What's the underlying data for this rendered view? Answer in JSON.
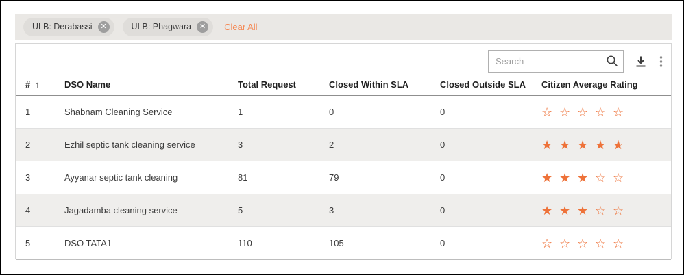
{
  "filters": {
    "chips": [
      {
        "label": "ULB: Derabassi"
      },
      {
        "label": "ULB: Phagwara"
      }
    ],
    "close_glyph": "✕",
    "clear_all_label": "Clear All"
  },
  "toolbar": {
    "search_placeholder": "Search"
  },
  "table": {
    "columns": {
      "hash": "#",
      "name": "DSO Name",
      "total": "Total Request",
      "within": "Closed Within SLA",
      "outside": "Closed Outside SLA",
      "rating": "Citizen Average Rating"
    },
    "sort_arrow": "↑",
    "rows": [
      {
        "index": "1",
        "name": "Shabnam Cleaning Service",
        "total": "1",
        "within": "0",
        "outside": "0",
        "rating": 0
      },
      {
        "index": "2",
        "name": "Ezhil septic tank cleaning service",
        "total": "3",
        "within": "2",
        "outside": "0",
        "rating": 4.5
      },
      {
        "index": "3",
        "name": "Ayyanar septic tank cleaning",
        "total": "81",
        "within": "79",
        "outside": "0",
        "rating": 3
      },
      {
        "index": "4",
        "name": "Jagadamba cleaning service",
        "total": "5",
        "within": "3",
        "outside": "0",
        "rating": 3
      },
      {
        "index": "5",
        "name": "DSO TATA1",
        "total": "110",
        "within": "105",
        "outside": "0",
        "rating": 0
      }
    ]
  },
  "colors": {
    "accent_orange": "#f5854f",
    "star_orange": "#ee7239",
    "alt_row_bg": "#efeeec",
    "chip_bg": "#dfddda",
    "bar_bg": "#eae8e5"
  }
}
